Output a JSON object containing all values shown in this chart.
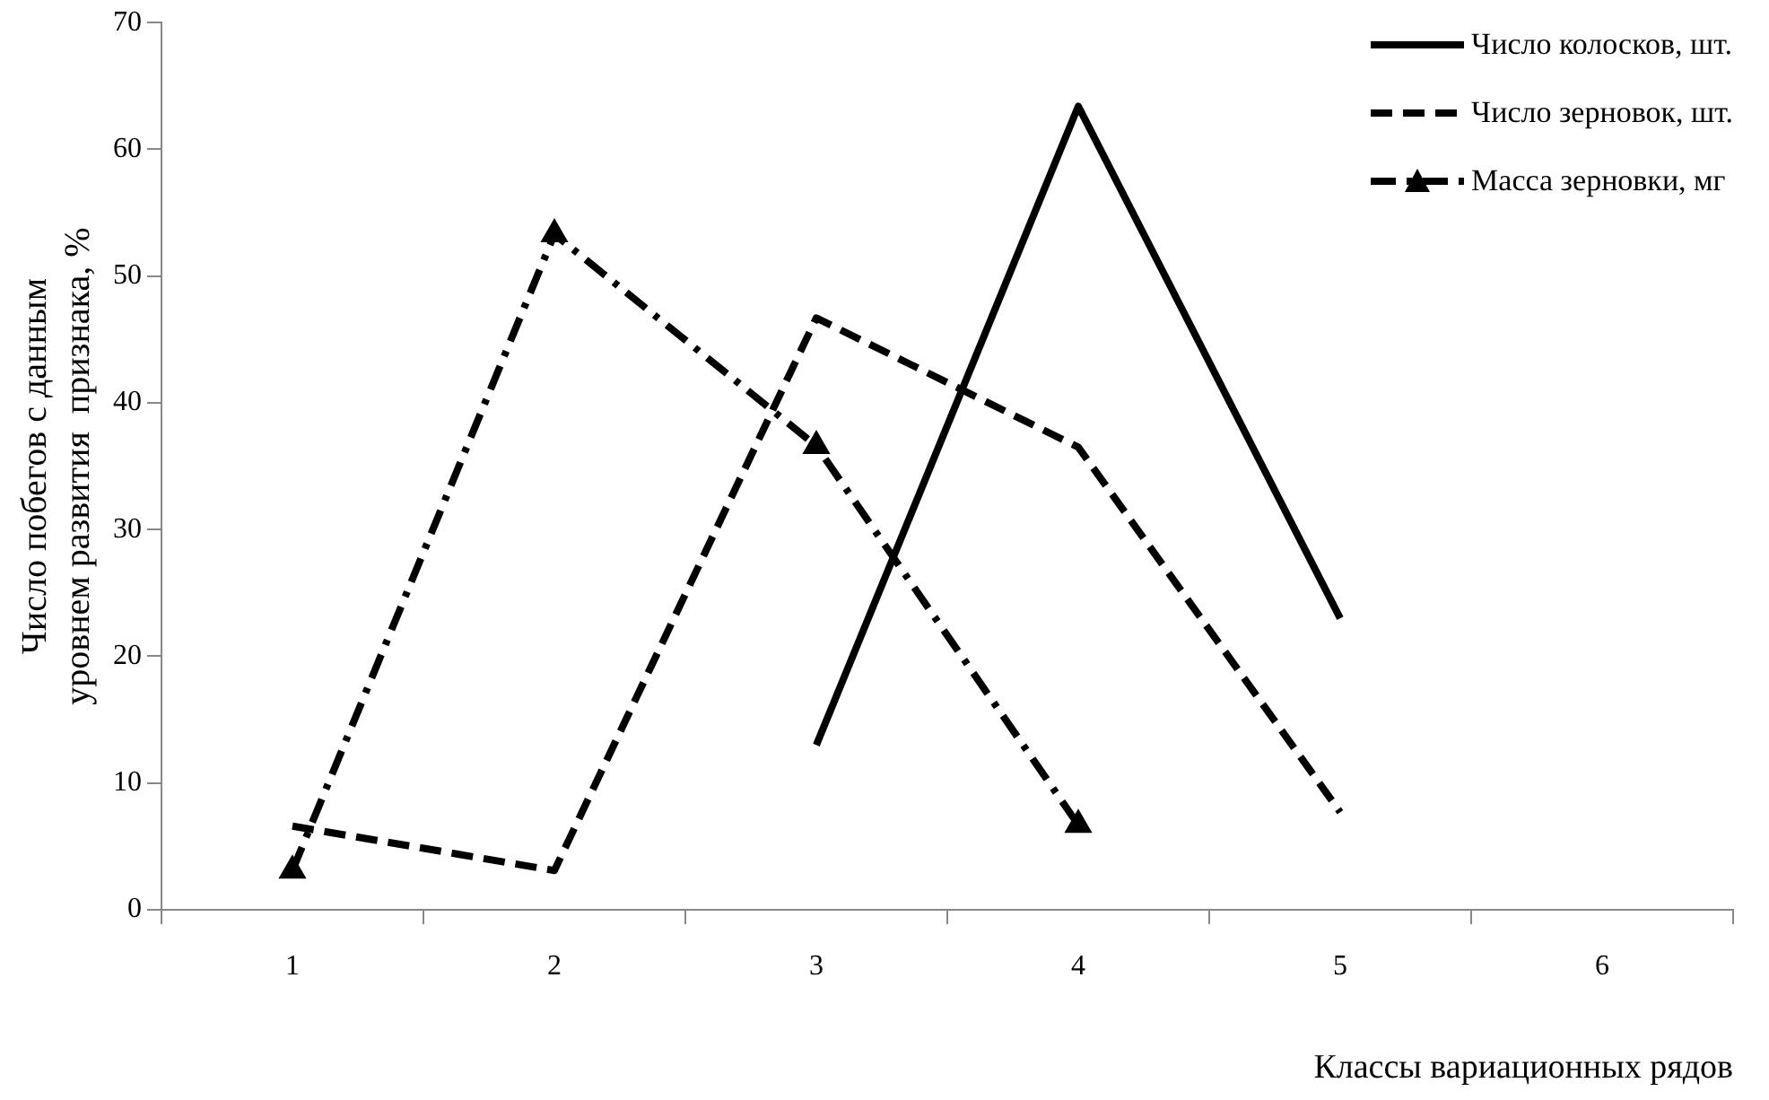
{
  "chart_data": {
    "type": "line",
    "xlabel": "Классы вариационных рядов",
    "ylabel": "Число побегов с данным уровнем развития  признака, %",
    "categories": [
      "1",
      "2",
      "3",
      "4",
      "5",
      "6"
    ],
    "series": [
      {
        "name": "Число колосков, шт.",
        "color": "#000000",
        "line_style": "solid",
        "marker": "none",
        "values": [
          null,
          null,
          13,
          63.4,
          23,
          null
        ]
      },
      {
        "name": "Число зерновок, шт.",
        "color": "#000000",
        "line_style": "dashed",
        "marker": "none",
        "values": [
          6.6,
          3.1,
          46.7,
          36.5,
          7.7,
          null
        ]
      },
      {
        "name": "Масса зерновки, мг",
        "color": "#000000",
        "line_style": "dashdot",
        "marker": "triangle",
        "values": [
          3.1,
          53.3,
          36.6,
          6.7,
          null,
          null
        ]
      }
    ],
    "ylim": [
      0,
      70
    ],
    "yticks": [
      0,
      10,
      20,
      30,
      40,
      50,
      60,
      70
    ],
    "grid": false,
    "legend": "top right"
  }
}
